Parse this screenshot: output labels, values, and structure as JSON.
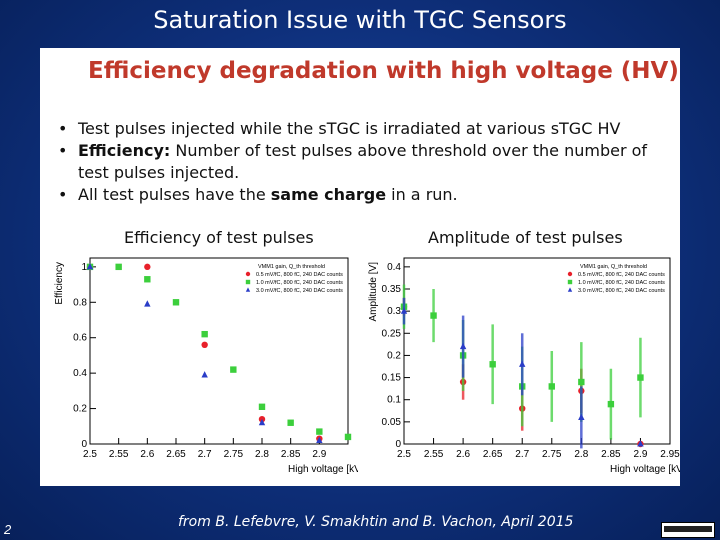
{
  "slide": {
    "title": "Saturation Issue with TGC Sensors",
    "page_number": "2",
    "footer": "from B. Lefebvre, V. Smakhtin and B. Vachon, April 2015"
  },
  "panel": {
    "title": "Efficiency degradation with high voltage (HV)",
    "bullets": [
      {
        "text": "Test pulses injected while the sTGC is irradiated at various sTGC HV"
      },
      {
        "bold": "Efficiency:",
        "text": " Number of test pulses above threshold over the number of test pulses injected."
      },
      {
        "pre": "All test pulses have the ",
        "bold": "same charge",
        "post": " in a run."
      }
    ]
  },
  "colors": {
    "red": "#e8202a",
    "green": "#3ccf3c",
    "blue": "#2a3dc8"
  },
  "chart_data": [
    {
      "type": "scatter",
      "title": "Efficiency of test pulses",
      "xlabel": "High voltage [kV]",
      "ylabel": "Efficiency",
      "xlim": [
        2.5,
        2.95
      ],
      "ylim": [
        0,
        1.05
      ],
      "xticks": [
        2.5,
        2.55,
        2.6,
        2.65,
        2.7,
        2.75,
        2.8,
        2.85,
        2.9
      ],
      "yticks": [
        0,
        0.2,
        0.4,
        0.6,
        0.8,
        1
      ],
      "legend_title": "VMM1 gain, Q_th threshold",
      "legend_position": "top-right",
      "series": [
        {
          "name": "0.5 mV/fC, 800 fC, 240 DAC counts",
          "color": "red",
          "marker": "circle",
          "points": [
            [
              2.5,
              1.0
            ],
            [
              2.6,
              1.0
            ],
            [
              2.7,
              0.56
            ],
            [
              2.8,
              0.14
            ],
            [
              2.9,
              0.03
            ]
          ]
        },
        {
          "name": "1.0 mV/fC, 800 fC, 240 DAC counts",
          "color": "green",
          "marker": "square",
          "points": [
            [
              2.5,
              1.0
            ],
            [
              2.55,
              1.0
            ],
            [
              2.6,
              0.93
            ],
            [
              2.65,
              0.8
            ],
            [
              2.7,
              0.62
            ],
            [
              2.75,
              0.42
            ],
            [
              2.8,
              0.21
            ],
            [
              2.85,
              0.12
            ],
            [
              2.9,
              0.07
            ],
            [
              2.95,
              0.04
            ]
          ]
        },
        {
          "name": "3.0 mV/fC, 800 fC, 240 DAC counts",
          "color": "blue",
          "marker": "triangle",
          "points": [
            [
              2.5,
              1.0
            ],
            [
              2.6,
              0.79
            ],
            [
              2.7,
              0.39
            ],
            [
              2.8,
              0.12
            ],
            [
              2.9,
              0.02
            ]
          ]
        }
      ]
    },
    {
      "type": "scatter",
      "title": "Amplitude of test pulses",
      "xlabel": "High voltage [kV]",
      "ylabel": "Amplitude [V]",
      "xlim": [
        2.5,
        2.95
      ],
      "ylim": [
        0,
        0.42
      ],
      "xticks": [
        2.5,
        2.55,
        2.6,
        2.65,
        2.7,
        2.75,
        2.8,
        2.85,
        2.9,
        2.95
      ],
      "yticks": [
        0,
        0.05,
        0.1,
        0.15,
        0.2,
        0.25,
        0.3,
        0.35,
        0.4
      ],
      "legend_title": "VMM1 gain, Q_th threshold",
      "legend_position": "top-right",
      "series": [
        {
          "name": "0.5 mV/fC, 800 fC, 240 DAC counts",
          "color": "red",
          "marker": "circle",
          "points": [
            [
              2.5,
              0.31,
              0.02
            ],
            [
              2.6,
              0.14,
              0.04
            ],
            [
              2.7,
              0.08,
              0.05
            ],
            [
              2.8,
              0.12,
              0.05
            ],
            [
              2.9,
              0.0,
              0.0
            ]
          ]
        },
        {
          "name": "1.0 mV/fC, 800 fC, 240 DAC counts",
          "color": "green",
          "marker": "square",
          "points": [
            [
              2.5,
              0.31,
              0.05
            ],
            [
              2.55,
              0.29,
              0.06
            ],
            [
              2.6,
              0.2,
              0.08
            ],
            [
              2.65,
              0.18,
              0.09
            ],
            [
              2.7,
              0.13,
              0.09
            ],
            [
              2.75,
              0.13,
              0.08
            ],
            [
              2.8,
              0.14,
              0.09
            ],
            [
              2.85,
              0.09,
              0.08
            ],
            [
              2.9,
              0.15,
              0.09
            ]
          ]
        },
        {
          "name": "3.0 mV/fC, 800 fC, 240 DAC counts",
          "color": "blue",
          "marker": "triangle",
          "points": [
            [
              2.5,
              0.3,
              0.03
            ],
            [
              2.6,
              0.22,
              0.07
            ],
            [
              2.7,
              0.18,
              0.07
            ],
            [
              2.8,
              0.06,
              0.07
            ],
            [
              2.9,
              0.0,
              0.0
            ]
          ]
        }
      ]
    }
  ]
}
